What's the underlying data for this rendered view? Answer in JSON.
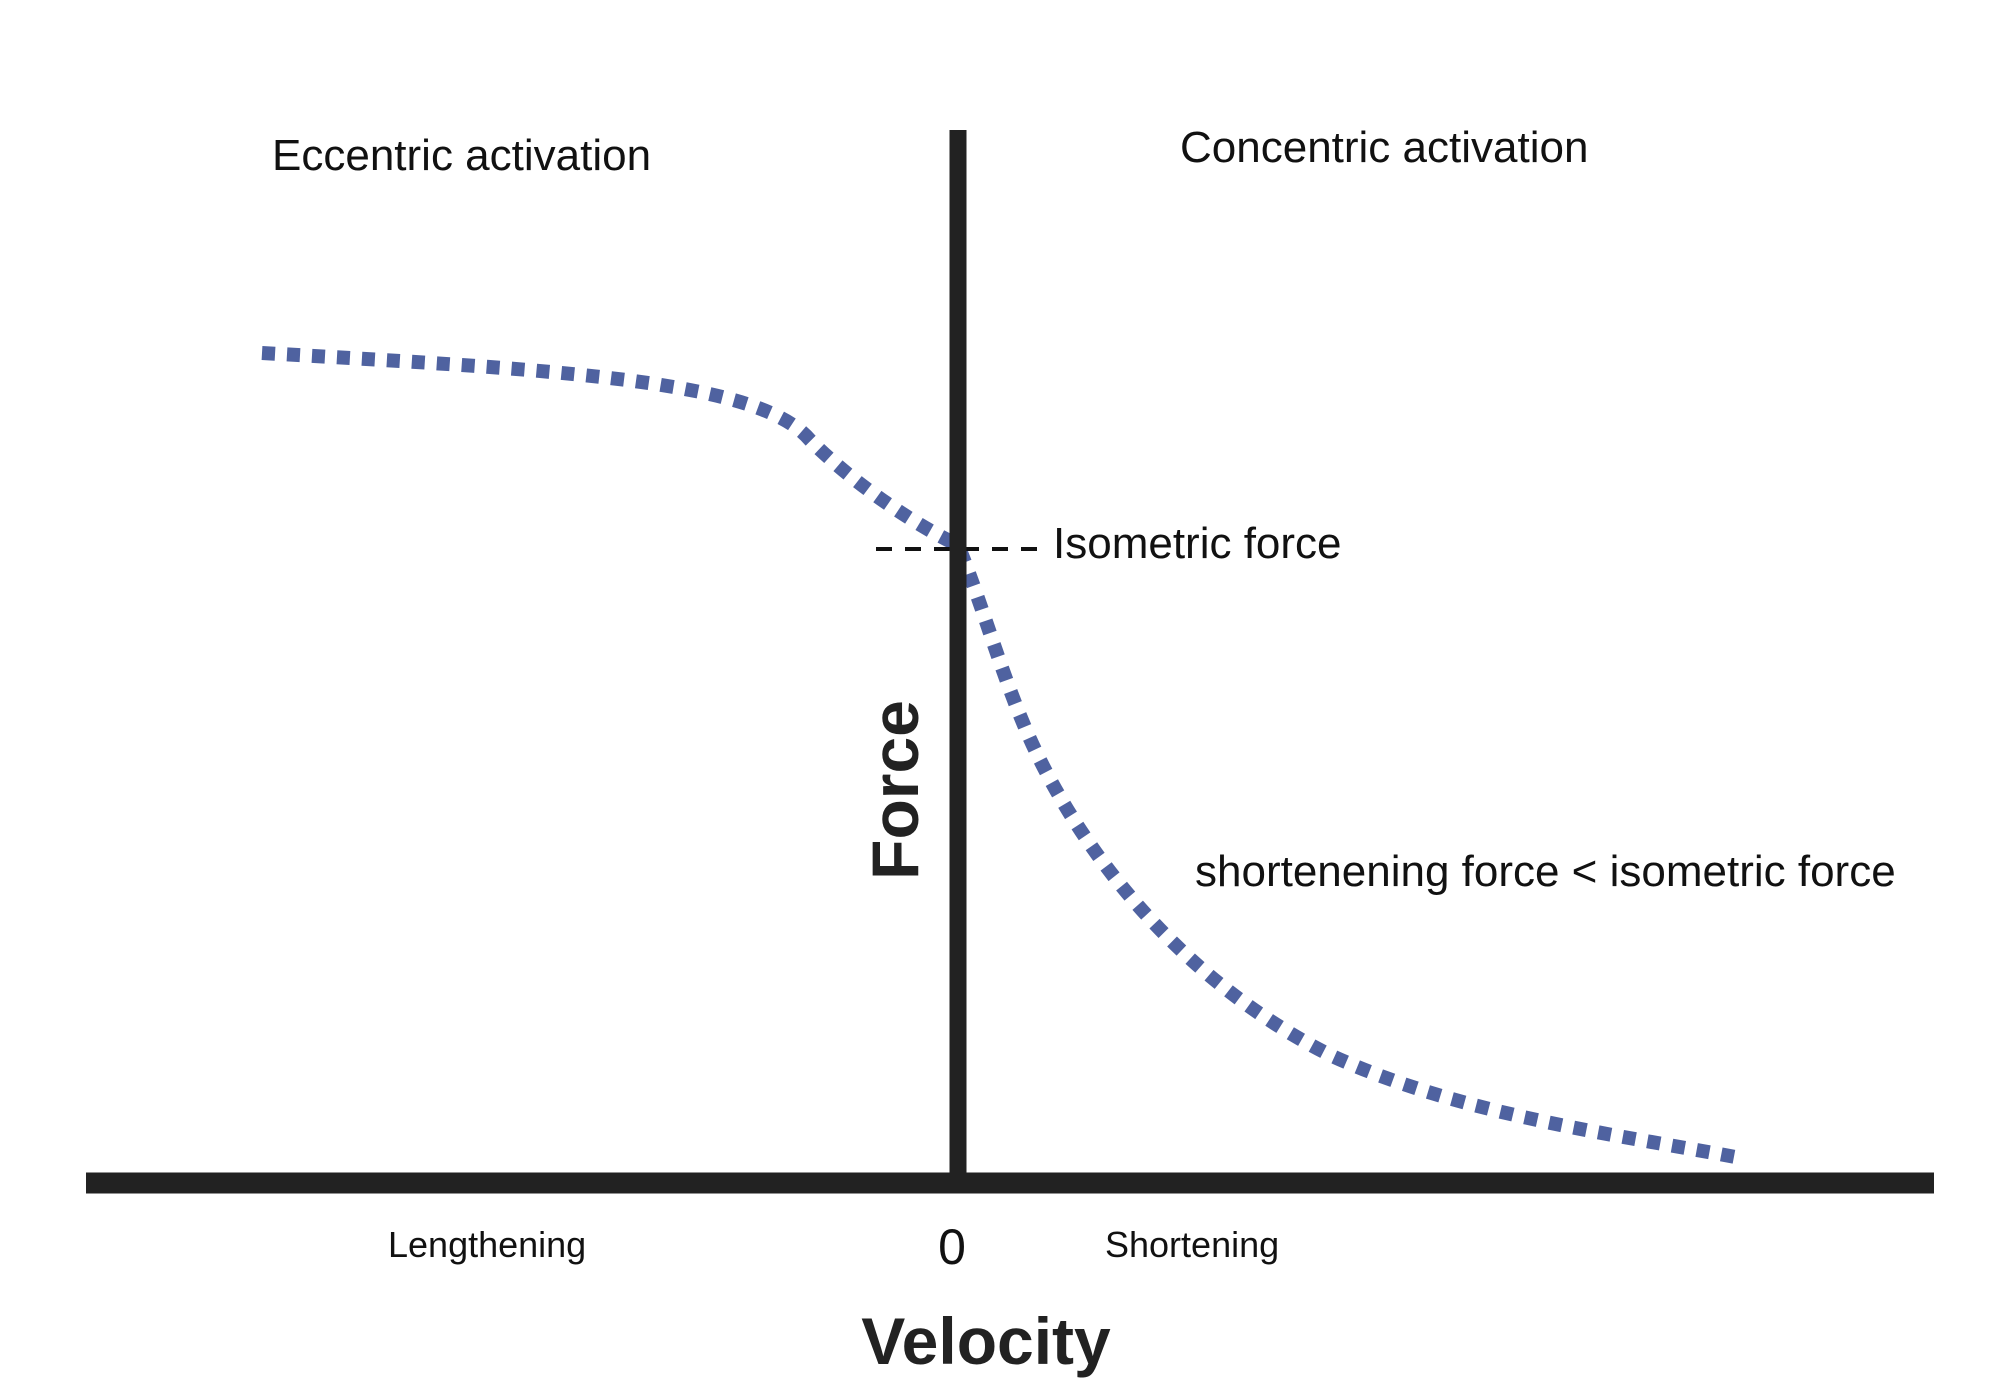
{
  "diagram": {
    "eccentric_label": "Eccentric activation",
    "concentric_label": "Concentric activation",
    "isometric_label": "Isometric force",
    "shortening_note": "shortenening force < isometric force",
    "lengthening_label": "Lengthening",
    "zero_label": "0",
    "shortening_label": "Shortening",
    "x_axis_title": "Velocity",
    "y_axis_title": "Force"
  },
  "colors": {
    "axis": "#222222",
    "curve": "#4f62a0",
    "isometric_line": "#111111",
    "text": "#111111"
  }
}
